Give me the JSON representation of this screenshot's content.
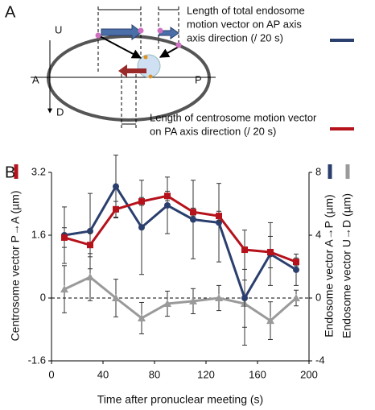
{
  "panel_labels": [
    "A",
    "B"
  ],
  "diagram": {
    "axis_labels": [
      "U",
      "D",
      "A",
      "P"
    ],
    "endosome_text": [
      "Length of total endosome",
      "motion vector on AP axis",
      "axis direction (/ 20 s)"
    ],
    "centrosome_text": [
      "Length of centrosome motion vector",
      "on PA axis direction (/ 20 s)"
    ]
  },
  "chart_data": {
    "type": "line",
    "xlabel": "Time after pronuclear meeting (s)",
    "x": [
      10,
      30,
      50,
      70,
      90,
      110,
      130,
      150,
      170,
      190
    ],
    "xlim": [
      0,
      200
    ],
    "xticks": [
      0,
      40,
      80,
      120,
      160,
      200
    ],
    "ylim": [
      -1.6,
      3.2
    ],
    "yticks": [
      -1.6,
      0,
      1.6,
      3.2
    ],
    "y2lim": [
      -4,
      8
    ],
    "y2ticks": [
      -4,
      0,
      4,
      8
    ],
    "series": [
      {
        "name": "Centrosome vector P→A (µm)",
        "color": "#b5121b",
        "marker": "square",
        "axis": "y",
        "values": [
          1.54,
          1.35,
          2.26,
          2.46,
          2.6,
          2.19,
          2.09,
          1.23,
          1.17,
          0.92
        ],
        "errors": [
          0.25,
          0.3,
          0.2,
          0.1,
          0.12,
          0.1,
          0.12,
          0.5,
          0.4,
          0.1
        ]
      },
      {
        "name": "Endosome vector A→P (µm)",
        "color": "#2b3f6e",
        "marker": "circle",
        "axis": "y2",
        "values": [
          4.0,
          4.26,
          7.1,
          4.5,
          5.9,
          5.0,
          4.8,
          0,
          2.8,
          1.8
        ],
        "errors": [
          1.8,
          2.4,
          2.0,
          3.0,
          1.8,
          2.5,
          2.5,
          3.0,
          2.0,
          1.0
        ]
      },
      {
        "name": "Endosome vector U→D (µm)",
        "color": "#9a9a9a",
        "marker": "triangle",
        "axis": "y2",
        "values": [
          0.56,
          1.33,
          0,
          -1.28,
          -0.36,
          -0.2,
          0,
          -0.36,
          -1.44,
          0
        ],
        "errors": [
          1.5,
          1.5,
          1.2,
          1.0,
          0.8,
          0.8,
          0.8,
          1.5,
          1.2,
          0.5
        ]
      }
    ]
  }
}
